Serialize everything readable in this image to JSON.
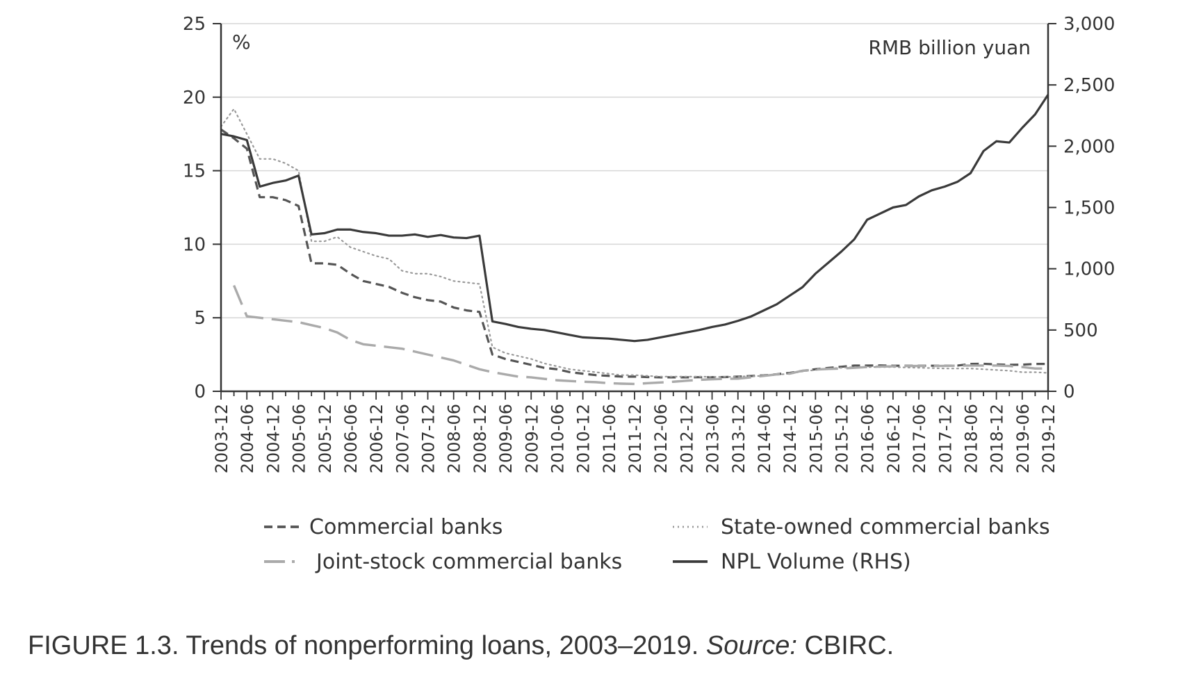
{
  "caption": {
    "figure_label": "FIGURE 1.3. Trends of nonperforming loans, 2003–2019.",
    "source_label": "Source:",
    "source_value": "CBIRC."
  },
  "chart_data": {
    "type": "line",
    "title": "",
    "xlabel": "",
    "ylabel_left": "%",
    "ylabel_right": "RMB billion yuan",
    "ylim_left": [
      0,
      25
    ],
    "ylim_right": [
      0,
      3000
    ],
    "yticks_left": [
      "0",
      "5",
      "10",
      "15",
      "20",
      "25"
    ],
    "yticks_right": [
      "0",
      "500",
      "1,000",
      "1,500",
      "2,000",
      "2,500",
      "3,000"
    ],
    "grid": "horizontal",
    "legend_position": "bottom",
    "x_tick_labels": [
      "2003-12",
      "2004-06",
      "2004-12",
      "2005-06",
      "2005-12",
      "2006-06",
      "2006-12",
      "2007-06",
      "2007-12",
      "2008-06",
      "2008-12",
      "2009-06",
      "2009-12",
      "2010-06",
      "2010-12",
      "2011-06",
      "2011-12",
      "2012-06",
      "2012-12",
      "2013-06",
      "2013-12",
      "2014-06",
      "2014-12",
      "2015-06",
      "2015-12",
      "2016-06",
      "2016-12",
      "2017-06",
      "2017-12",
      "2018-06",
      "2018-12",
      "2019-06",
      "2019-12"
    ],
    "x": [
      "2003-12",
      "2004-03",
      "2004-06",
      "2004-09",
      "2004-12",
      "2005-03",
      "2005-06",
      "2005-09",
      "2005-12",
      "2006-03",
      "2006-06",
      "2006-09",
      "2006-12",
      "2007-03",
      "2007-06",
      "2007-09",
      "2007-12",
      "2008-03",
      "2008-06",
      "2008-09",
      "2008-12",
      "2009-03",
      "2009-06",
      "2009-09",
      "2009-12",
      "2010-03",
      "2010-06",
      "2010-09",
      "2010-12",
      "2011-03",
      "2011-06",
      "2011-09",
      "2011-12",
      "2012-03",
      "2012-06",
      "2012-09",
      "2012-12",
      "2013-03",
      "2013-06",
      "2013-09",
      "2013-12",
      "2014-03",
      "2014-06",
      "2014-09",
      "2014-12",
      "2015-03",
      "2015-06",
      "2015-09",
      "2015-12",
      "2016-03",
      "2016-06",
      "2016-09",
      "2016-12",
      "2017-03",
      "2017-06",
      "2017-09",
      "2017-12",
      "2018-03",
      "2018-06",
      "2018-09",
      "2018-12",
      "2019-03",
      "2019-06",
      "2019-09",
      "2019-12"
    ],
    "series": [
      {
        "name": "Commercial banks",
        "axis": "left",
        "style": "dash",
        "color": "#555555",
        "values": [
          17.8,
          17.2,
          16.5,
          13.2,
          13.2,
          13.0,
          12.6,
          8.7,
          8.7,
          8.6,
          8.0,
          7.5,
          7.3,
          7.1,
          6.7,
          6.4,
          6.2,
          6.1,
          5.7,
          5.5,
          5.4,
          2.5,
          2.2,
          2.0,
          1.8,
          1.6,
          1.5,
          1.3,
          1.2,
          1.1,
          1.05,
          1.0,
          1.0,
          0.97,
          0.95,
          0.95,
          0.95,
          0.96,
          0.96,
          0.97,
          1.0,
          1.04,
          1.08,
          1.16,
          1.25,
          1.39,
          1.5,
          1.59,
          1.67,
          1.75,
          1.75,
          1.76,
          1.74,
          1.74,
          1.74,
          1.74,
          1.74,
          1.75,
          1.86,
          1.87,
          1.83,
          1.8,
          1.81,
          1.86,
          1.86
        ]
      },
      {
        "name": "State-owned commercial banks",
        "axis": "left",
        "style": "dot",
        "color": "#999999",
        "values": [
          18.0,
          19.2,
          17.5,
          15.8,
          15.8,
          15.5,
          15.0,
          10.2,
          10.2,
          10.5,
          9.8,
          9.5,
          9.2,
          9.0,
          8.2,
          8.0,
          8.0,
          7.8,
          7.5,
          7.4,
          7.3,
          3.0,
          2.6,
          2.4,
          2.2,
          1.9,
          1.7,
          1.5,
          1.4,
          1.3,
          1.2,
          1.1,
          1.1,
          1.05,
          1.0,
          1.0,
          1.0,
          1.0,
          0.98,
          0.98,
          1.0,
          1.03,
          1.05,
          1.12,
          1.2,
          1.35,
          1.45,
          1.55,
          1.6,
          1.65,
          1.65,
          1.65,
          1.65,
          1.62,
          1.6,
          1.58,
          1.55,
          1.55,
          1.55,
          1.5,
          1.45,
          1.4,
          1.3,
          1.3,
          1.25
        ]
      },
      {
        "name": "Joint-stock commercial banks",
        "axis": "left",
        "style": "longdash",
        "color": "#aaaaaa",
        "values": [
          null,
          7.2,
          5.1,
          5.0,
          4.9,
          4.8,
          4.7,
          4.5,
          4.3,
          4.0,
          3.5,
          3.2,
          3.1,
          3.0,
          2.9,
          2.7,
          2.5,
          2.3,
          2.1,
          1.8,
          1.5,
          1.3,
          1.15,
          1.0,
          0.95,
          0.85,
          0.75,
          0.7,
          0.65,
          0.62,
          0.55,
          0.52,
          0.5,
          0.55,
          0.6,
          0.65,
          0.72,
          0.78,
          0.82,
          0.85,
          0.86,
          0.95,
          1.05,
          1.15,
          1.2,
          1.4,
          1.48,
          1.52,
          1.55,
          1.6,
          1.65,
          1.68,
          1.7,
          1.72,
          1.72,
          1.72,
          1.73,
          1.74,
          1.75,
          1.75,
          1.75,
          1.72,
          1.65,
          1.55,
          1.55
        ]
      },
      {
        "name": "NPL Volume (RHS)",
        "axis": "right",
        "style": "solid",
        "color": "#3a3a3a",
        "values": [
          2100,
          2080,
          2050,
          1670,
          1700,
          1720,
          1760,
          1280,
          1290,
          1320,
          1320,
          1300,
          1290,
          1270,
          1270,
          1280,
          1260,
          1275,
          1255,
          1250,
          1270,
          570,
          550,
          525,
          510,
          500,
          480,
          460,
          440,
          435,
          430,
          420,
          410,
          420,
          440,
          460,
          480,
          500,
          525,
          545,
          575,
          610,
          660,
          710,
          780,
          850,
          960,
          1050,
          1140,
          1240,
          1400,
          1450,
          1500,
          1520,
          1590,
          1640,
          1670,
          1710,
          1780,
          1960,
          2040,
          2030,
          2150,
          2260,
          2420
        ]
      }
    ]
  }
}
